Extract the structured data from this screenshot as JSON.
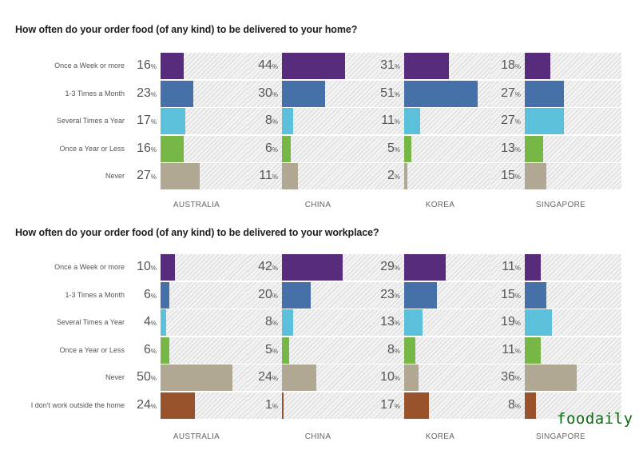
{
  "colors": {
    "Once a Week or more": "#572c7c",
    "1-3 Times a Month": "#4670a8",
    "Several Times a Year": "#5bc0da",
    "Once a Year or Less": "#77b747",
    "Never": "#b0a892",
    "I don't work outside the home": "#98532c"
  },
  "watermark": "foodaily",
  "chart_data": [
    {
      "type": "bar",
      "orientation": "horizontal",
      "title": "How often do your order food (of any kind) to be delivered to your home?",
      "categories": [
        "Once a Week or more",
        "1-3 Times a Month",
        "Several Times a Year",
        "Once a Year or Less",
        "Never"
      ],
      "panels": [
        "AUSTRALIA",
        "CHINA",
        "KOREA",
        "SINGAPORE"
      ],
      "series": [
        {
          "name": "AUSTRALIA",
          "values": [
            16,
            23,
            17,
            16,
            27
          ]
        },
        {
          "name": "CHINA",
          "values": [
            44,
            30,
            8,
            6,
            11
          ]
        },
        {
          "name": "KOREA",
          "values": [
            31,
            51,
            11,
            5,
            2
          ]
        },
        {
          "name": "SINGAPORE",
          "values": [
            18,
            27,
            27,
            13,
            15
          ]
        }
      ],
      "unit": "%",
      "xlim": [
        0,
        67
      ],
      "grid": false
    },
    {
      "type": "bar",
      "orientation": "horizontal",
      "title": "How often do your order food (of any kind) to be delivered to your workplace?",
      "categories": [
        "Once a Week or more",
        "1-3 Times a Month",
        "Several Times a Year",
        "Once a Year or Less",
        "Never",
        "I don't work outside the home"
      ],
      "panels": [
        "AUSTRALIA",
        "CHINA",
        "KOREA",
        "SINGAPORE"
      ],
      "series": [
        {
          "name": "AUSTRALIA",
          "values": [
            10,
            6,
            4,
            6,
            50,
            24
          ]
        },
        {
          "name": "CHINA",
          "values": [
            42,
            20,
            8,
            5,
            24,
            1
          ]
        },
        {
          "name": "KOREA",
          "values": [
            29,
            23,
            13,
            8,
            10,
            17
          ]
        },
        {
          "name": "SINGAPORE",
          "values": [
            11,
            15,
            19,
            11,
            36,
            8
          ]
        }
      ],
      "unit": "%",
      "xlim": [
        0,
        67
      ],
      "grid": false
    }
  ]
}
